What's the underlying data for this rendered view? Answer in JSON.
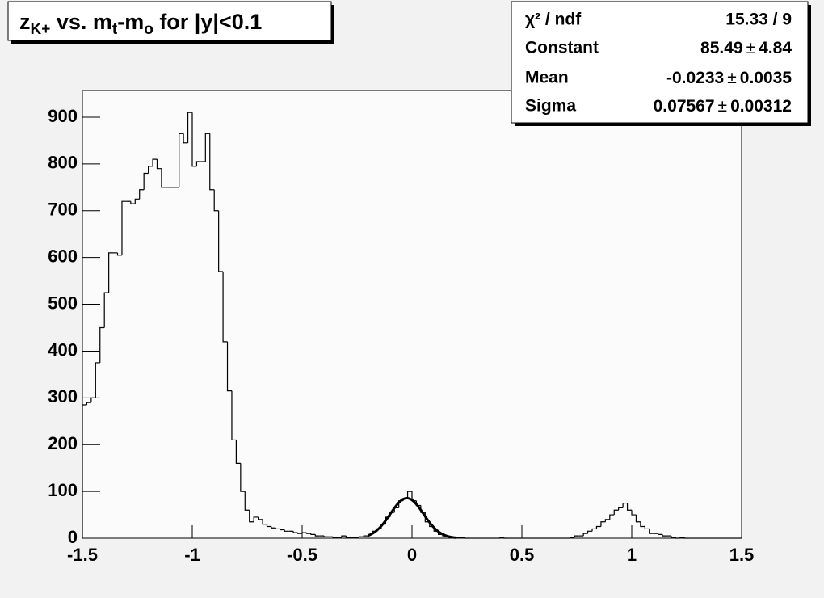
{
  "chart_data": {
    "type": "histogram",
    "title": [
      {
        "text": "z"
      },
      {
        "text": "K+",
        "sub": true
      },
      {
        "text": " vs. m"
      },
      {
        "text": "t",
        "sub": true
      },
      {
        "text": "-m"
      },
      {
        "text": "o",
        "sub": true
      },
      {
        "text": " for |y|<0.1"
      }
    ],
    "bins": [
      -1.5,
      -1.48,
      -1.46,
      -1.44,
      -1.42,
      -1.4,
      -1.38,
      -1.36,
      -1.34,
      -1.32,
      -1.3,
      -1.28,
      -1.26,
      -1.24,
      -1.22,
      -1.2,
      -1.18,
      -1.16,
      -1.14,
      -1.12,
      -1.1,
      -1.08,
      -1.06,
      -1.04,
      -1.02,
      -1,
      -0.98,
      -0.96,
      -0.94,
      -0.92,
      -0.9,
      -0.88,
      -0.86,
      -0.84,
      -0.82,
      -0.8,
      -0.78,
      -0.76,
      -0.74,
      -0.72,
      -0.7,
      -0.68,
      -0.66,
      -0.64,
      -0.62,
      -0.6,
      -0.58,
      -0.56,
      -0.54,
      -0.52,
      -0.5,
      -0.48,
      -0.46,
      -0.44,
      -0.42,
      -0.4,
      -0.38,
      -0.36,
      -0.34,
      -0.32,
      -0.3,
      -0.28,
      -0.26,
      -0.24,
      -0.22,
      -0.2,
      -0.18,
      -0.16,
      -0.14,
      -0.12,
      -0.1,
      -0.08,
      -0.06,
      -0.04,
      -0.02,
      0,
      0.02,
      0.04,
      0.06,
      0.08,
      0.1,
      0.12,
      0.14,
      0.16,
      0.18,
      0.2,
      0.22,
      0.24,
      0.26,
      0.28,
      0.3,
      0.32,
      0.34,
      0.36,
      0.38,
      0.4,
      0.42,
      0.44,
      0.46,
      0.48,
      0.5,
      0.52,
      0.54,
      0.56,
      0.58,
      0.6,
      0.62,
      0.64,
      0.66,
      0.68,
      0.7,
      0.72,
      0.74,
      0.76,
      0.78,
      0.8,
      0.82,
      0.84,
      0.86,
      0.88,
      0.9,
      0.92,
      0.94,
      0.96,
      0.98,
      1,
      1.02,
      1.04,
      1.06,
      1.08,
      1.1,
      1.12,
      1.14,
      1.16,
      1.18,
      1.2,
      1.22,
      1.24,
      1.26,
      1.28,
      1.3,
      1.32,
      1.34,
      1.36,
      1.38,
      1.4,
      1.42,
      1.44,
      1.46,
      1.48,
      1.5
    ],
    "counts": [
      285,
      290,
      300,
      375,
      450,
      525,
      610,
      610,
      605,
      720,
      720,
      715,
      725,
      745,
      780,
      795,
      810,
      790,
      750,
      750,
      750,
      750,
      865,
      845,
      910,
      795,
      805,
      805,
      865,
      745,
      700,
      570,
      420,
      315,
      210,
      160,
      100,
      60,
      35,
      45,
      40,
      30,
      25,
      22,
      20,
      18,
      15,
      15,
      12,
      10,
      12,
      10,
      8,
      5,
      5,
      3,
      3,
      2,
      2,
      5,
      2,
      1,
      2,
      3,
      5,
      8,
      15,
      20,
      30,
      45,
      55,
      65,
      80,
      85,
      100,
      80,
      70,
      55,
      35,
      25,
      15,
      8,
      5,
      3,
      2,
      1,
      1,
      0,
      0,
      0,
      0,
      0,
      0,
      0,
      0,
      1,
      0,
      0,
      0,
      0,
      0,
      0,
      0,
      0,
      0,
      0,
      0,
      0,
      0,
      0,
      0,
      2,
      5,
      5,
      10,
      15,
      20,
      25,
      35,
      40,
      50,
      60,
      65,
      75,
      60,
      50,
      35,
      25,
      20,
      10,
      10,
      8,
      5,
      5,
      2,
      0,
      2,
      0,
      0,
      0,
      0,
      0,
      0,
      0,
      0,
      0,
      0,
      0,
      0,
      0
    ],
    "xlim": [
      -1.5,
      1.5
    ],
    "xticks": [
      -1.5,
      -1,
      -0.5,
      0,
      0.5,
      1,
      1.5
    ],
    "ylim": [
      0,
      957
    ],
    "yticks": [
      0,
      100,
      200,
      300,
      400,
      500,
      600,
      700,
      800,
      900
    ],
    "fit": {
      "function": "gaus",
      "range": [
        -0.2,
        0.2
      ],
      "constant": 85.49,
      "mean": -0.0233,
      "sigma": 0.07567
    },
    "stats": {
      "chi2_label": "χ² / ndf",
      "chi2_value": "15.33 / 9",
      "separator": "±",
      "rows": [
        {
          "label": "Constant",
          "value": 85.49,
          "error": 4.84
        },
        {
          "label": "Mean",
          "value": -0.0233,
          "error": 0.0035
        },
        {
          "label": "Sigma",
          "value": 0.07567,
          "error": 0.00312
        }
      ]
    }
  }
}
